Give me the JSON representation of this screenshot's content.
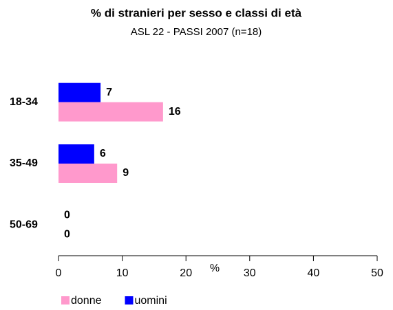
{
  "chart_data": {
    "type": "hbar",
    "title": "% di stranieri per sesso e classi di età",
    "subtitle": "ASL 22  - PASSI 2007 (n=18)",
    "xlabel": "%",
    "categories": [
      "18-34",
      "35-49",
      "50-69"
    ],
    "series": [
      {
        "name": "donne",
        "color": "#ff99cc",
        "values": [
          16.4,
          9.2,
          0
        ],
        "value_labels": [
          "16",
          "9",
          "0"
        ]
      },
      {
        "name": "uomini",
        "color": "#0000ff",
        "values": [
          6.6,
          5.6,
          0
        ],
        "value_labels": [
          "7",
          "6",
          "0"
        ]
      }
    ],
    "xlim": [
      0,
      50
    ],
    "xticks": [
      0,
      10,
      20,
      30,
      40,
      50
    ],
    "legend": "bottom"
  }
}
